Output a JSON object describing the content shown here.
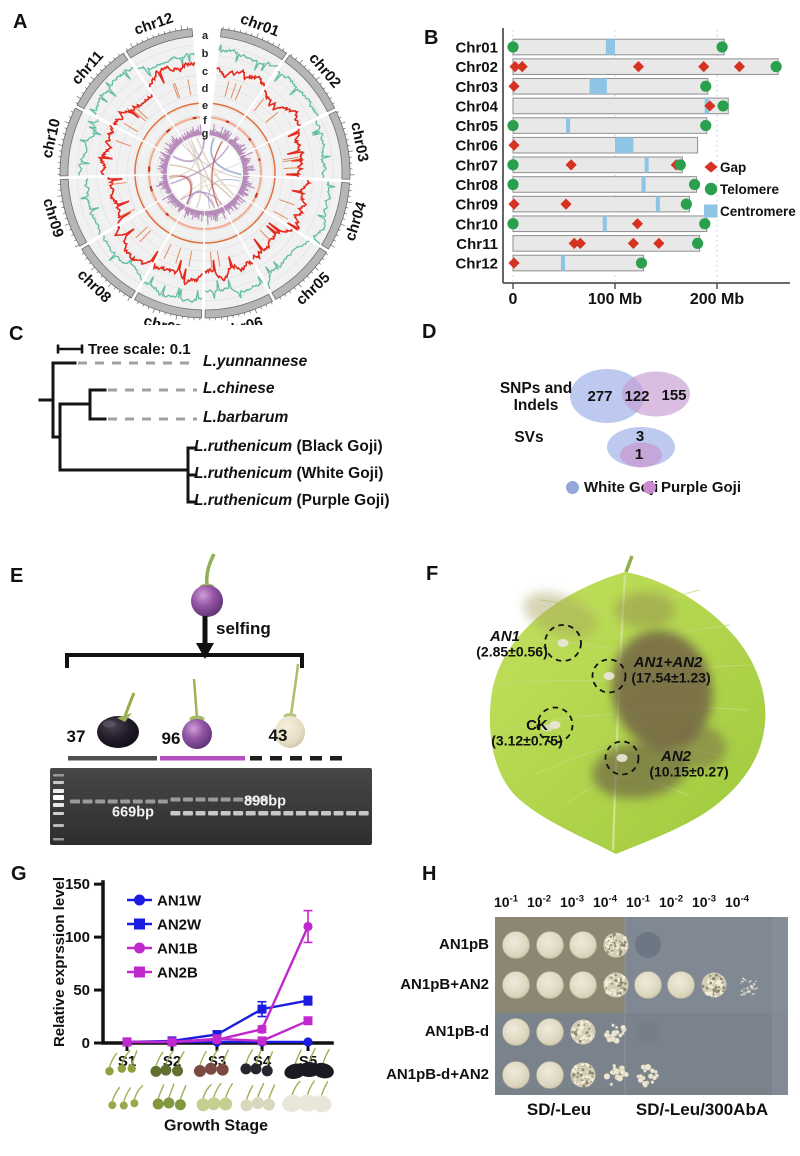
{
  "panels": {
    "a": {
      "label": "A",
      "chromosomes": [
        "chr01",
        "chr02",
        "chr03",
        "chr04",
        "chr05",
        "chr06",
        "chr07",
        "chr08",
        "chr09",
        "chr10",
        "chr11",
        "chr12"
      ],
      "track_letters": [
        "a",
        "b",
        "c",
        "d",
        "e",
        "f",
        "g"
      ],
      "colors": {
        "ring": "#b6b6b6",
        "ring_edge": "#6e6e6e",
        "track_bg": "#f1f1f1",
        "grid": "#e1e1e1",
        "teal": "#66bda6",
        "red": "#e42a1e",
        "orange": "#e0703c",
        "pale_orange": "#f2ae92",
        "purple": "#b78cbb",
        "dark_red": "#c23a22"
      }
    },
    "b": {
      "label": "B",
      "legend": [
        {
          "label": "Gap",
          "shape": "diamond",
          "color": "#d63222"
        },
        {
          "label": "Telomere",
          "shape": "circle",
          "color": "#2aa04e"
        },
        {
          "label": "Centromere",
          "shape": "square",
          "color": "#8ec4e4"
        }
      ],
      "bar_fill": "#e8e8e8",
      "bar_edge": "#8f8f8f"
    },
    "c": {
      "label": "C",
      "scale_label": "Tree scale: 0.1",
      "taxa": [
        {
          "species": "L.yunnannese",
          "suffix": "",
          "dashed": true
        },
        {
          "species": "L.chinese",
          "suffix": "",
          "dashed": true
        },
        {
          "species": "L.barbarum",
          "suffix": "",
          "dashed": true
        },
        {
          "species": "L.ruthenicum",
          "suffix": " (Black Goji)",
          "dashed": false
        },
        {
          "species": "L.ruthenicum",
          "suffix": " (White Goji)",
          "dashed": false
        },
        {
          "species": "L.ruthenicum",
          "suffix": " (Purple Goji)",
          "dashed": false
        }
      ]
    },
    "d": {
      "label": "D",
      "row1_line1": "SNPs and",
      "row1_line2": "Indels",
      "row2": "SVs",
      "values": {
        "snp_left": "277",
        "snp_overlap": "122",
        "snp_right": "155",
        "sv_outer": "3",
        "sv_inner": "1"
      },
      "legend": [
        {
          "label": "White Goji",
          "color": "#93a7dd"
        },
        {
          "label": "Purple Goji",
          "color": "#c88bcd"
        }
      ],
      "colors": {
        "white_goji": "#b2bfeb",
        "purple_goji": "#c69dd3"
      }
    },
    "e": {
      "label": "E",
      "selfing_label": "selfing",
      "counts": [
        "37",
        "96",
        "43"
      ],
      "band_left": "669bp",
      "band_right": "898bp",
      "group_bars": [
        {
          "style": "solid",
          "color": "#4f4f4f"
        },
        {
          "style": "solid",
          "color": "#b44fc0"
        },
        {
          "style": "dashed",
          "color": "#1c1c1c"
        }
      ],
      "gel_groups": [
        {
          "lanes": 8,
          "bands": [
            "upper"
          ]
        },
        {
          "lanes": 8,
          "bands": [
            "upper",
            "lower"
          ]
        },
        {
          "lanes": 8,
          "bands": [
            "lower"
          ]
        }
      ]
    },
    "f": {
      "label": "F",
      "spots": [
        {
          "name": "AN1",
          "value": "(2.85±0.56)"
        },
        {
          "name": "AN1+AN2",
          "value": "(17.54±1.23)"
        },
        {
          "name": "CK",
          "value": "(3.12±0.75)"
        },
        {
          "name": "AN2",
          "value": "(10.15±0.27)"
        }
      ]
    },
    "g": {
      "label": "G"
    },
    "h": {
      "label": "H",
      "dilutions": [
        {
          "base": "10",
          "exp": "-1"
        },
        {
          "base": "10",
          "exp": "-2"
        },
        {
          "base": "10",
          "exp": "-3"
        },
        {
          "base": "10",
          "exp": "-4"
        }
      ],
      "rows": [
        "AN1pB",
        "AN1pB+AN2",
        "AN1pB-d",
        "AN1pB-d+AN2"
      ],
      "plate_labels": [
        "SD/-Leu",
        "SD/-Leu/300AbA"
      ],
      "growth": [
        {
          "left": [
            "solid",
            "solid",
            "solid",
            "speckled"
          ],
          "right": [
            "ghost",
            "none",
            "none",
            "none"
          ]
        },
        {
          "left": [
            "solid",
            "solid",
            "solid",
            "speckled"
          ],
          "right": [
            "solid",
            "solid",
            "speckled",
            "sparse-faint"
          ]
        },
        {
          "left": [
            "solid",
            "solid",
            "speckled",
            "sparse"
          ],
          "right": [
            "ghost-faint",
            "none",
            "none",
            "none"
          ]
        },
        {
          "left": [
            "solid",
            "solid",
            "speckled",
            "sparse"
          ],
          "right": [
            "sparse",
            "none",
            "none",
            "none"
          ]
        }
      ]
    }
  },
  "chart_data": [
    {
      "type": "ideogram",
      "title": "Chromosome gaps, telomeres and centromeres",
      "x_unit": "Mb",
      "xlim": [
        0,
        280
      ],
      "xticks": [
        {
          "v": 0,
          "label": "0"
        },
        {
          "v": 100,
          "label": "100 Mb"
        },
        {
          "v": 200,
          "label": "200 Mb"
        }
      ],
      "legend": [
        "Gap",
        "Telomere",
        "Centromere"
      ],
      "rows": [
        {
          "name": "Chr01",
          "length": 207,
          "telomeres": [
            0,
            205
          ],
          "centromere": [
            91,
            100
          ],
          "gaps": []
        },
        {
          "name": "Chr02",
          "length": 260,
          "telomeres": [
            258
          ],
          "centromere": null,
          "gaps": [
            2,
            9,
            123,
            187,
            222
          ]
        },
        {
          "name": "Chr03",
          "length": 191,
          "telomeres": [
            189
          ],
          "centromere": [
            75,
            92
          ],
          "gaps": [
            1
          ]
        },
        {
          "name": "Chr04",
          "length": 211,
          "telomeres": [
            206
          ],
          "centromere": [
            188,
            192
          ],
          "gaps": [
            193
          ]
        },
        {
          "name": "Chr05",
          "length": 190,
          "telomeres": [
            0,
            189
          ],
          "centromere": [
            52,
            56
          ],
          "gaps": []
        },
        {
          "name": "Chr06",
          "length": 181,
          "telomeres": [],
          "centromere": [
            100,
            118
          ],
          "gaps": [
            1
          ]
        },
        {
          "name": "Chr07",
          "length": 166,
          "telomeres": [
            0,
            164
          ],
          "centromere": [
            129,
            133
          ],
          "gaps": [
            57,
            160
          ]
        },
        {
          "name": "Chr08",
          "length": 180,
          "telomeres": [
            0,
            178
          ],
          "centromere": [
            126,
            130
          ],
          "gaps": []
        },
        {
          "name": "Chr09",
          "length": 173,
          "telomeres": [
            170
          ],
          "centromere": [
            140,
            144
          ],
          "gaps": [
            1,
            52
          ]
        },
        {
          "name": "Chr10",
          "length": 190,
          "telomeres": [
            0,
            188
          ],
          "centromere": [
            88,
            92
          ],
          "gaps": [
            122
          ]
        },
        {
          "name": "Chr11",
          "length": 183,
          "telomeres": [
            181
          ],
          "centromere": null,
          "gaps": [
            60,
            66,
            118,
            143
          ]
        },
        {
          "name": "Chr12",
          "length": 128,
          "telomeres": [
            126
          ],
          "centromere": [
            47,
            51
          ],
          "gaps": [
            1
          ]
        }
      ]
    },
    {
      "type": "line",
      "x": [
        "S1",
        "S2",
        "S3",
        "S4",
        "S5"
      ],
      "series": [
        {
          "name": "AN1W",
          "color": "#1c1ce0",
          "marker": "circle",
          "values": [
            1,
            1,
            1,
            1,
            1
          ],
          "errors": [
            0,
            0,
            0,
            0,
            0
          ]
        },
        {
          "name": "AN2W",
          "color": "#1c1ce0",
          "marker": "square",
          "values": [
            1,
            2,
            8,
            32,
            40
          ],
          "errors": [
            0,
            0,
            1,
            7,
            4
          ]
        },
        {
          "name": "AN1B",
          "color": "#c128cd",
          "marker": "circle",
          "values": [
            1,
            1,
            3,
            13,
            110
          ],
          "errors": [
            0,
            0,
            1,
            3,
            15
          ]
        },
        {
          "name": "AN2B",
          "color": "#c128cd",
          "marker": "square",
          "values": [
            1,
            1,
            4,
            2,
            21
          ],
          "errors": [
            0,
            0,
            1,
            1,
            2
          ]
        }
      ],
      "ylabel": "Relative exprssion level",
      "xlabel": "Growth Stage",
      "yticks": [
        0,
        50,
        100,
        150
      ],
      "ylim": [
        0,
        150
      ],
      "legend_position": "top-left"
    },
    {
      "type": "venn",
      "sets": [
        "White Goji",
        "Purple Goji"
      ],
      "groups": [
        {
          "label": "SNPs and Indels",
          "left_only": 277,
          "overlap": 122,
          "right_only": 155
        },
        {
          "label": "SVs",
          "left_only": 3,
          "overlap": 1,
          "right_only": 0
        }
      ]
    }
  ]
}
